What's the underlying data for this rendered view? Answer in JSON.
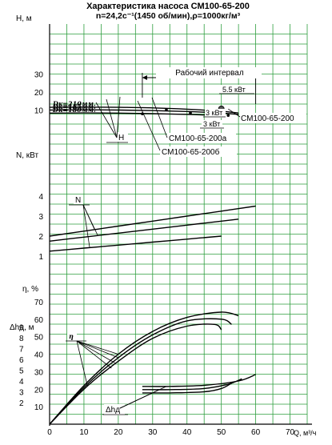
{
  "title": "Характеристика насоса СМ100-65-200",
  "subtitle": "n=24,2с⁻¹(1450 об/мин),ρ=1000кг/м³",
  "colors": {
    "grid": "#2e9e3e",
    "curve": "#000000"
  },
  "chart_data": {
    "type": "line",
    "x_label": "Q, м³/ч",
    "x_ticks": [
      "0",
      "10",
      "20",
      "30",
      "40",
      "50",
      "60",
      "70"
    ],
    "xlim": [
      0,
      75
    ],
    "panels": [
      {
        "id": "head",
        "ylabel": "H, м",
        "ylim": [
          0,
          40
        ],
        "y_ticks": [
          "10",
          "20",
          "30"
        ],
        "series": [
          {
            "name": "Dк=210мм.",
            "x": [
              0,
              10,
              20,
              30,
              40,
              50,
              55
            ],
            "y": [
              11.5,
              11.6,
              11.5,
              11.2,
              10.5,
              9.3,
              8.4
            ]
          },
          {
            "name": "Dк=185мм.",
            "x": [
              0,
              10,
              20,
              30,
              40,
              50,
              55
            ],
            "y": [
              10,
              10.1,
              10,
              9.7,
              9.2,
              8.3,
              7.6
            ]
          },
          {
            "name": "Dк=180мм.",
            "x": [
              0,
              10,
              20,
              30,
              40,
              50
            ],
            "y": [
              8.3,
              8.4,
              8.3,
              8,
              7.6,
              6.9
            ]
          }
        ],
        "annotations": {
          "work_interval": "Рабочий интервал",
          "model_1": "СМ100-65-200",
          "model_2": "СМ100-65-200а",
          "model_3": "СМ100-65-200б",
          "curve_letter": "H",
          "power_1": "5.5 кВт",
          "power_2": "3 кВт",
          "power_3": "3 кВт"
        }
      },
      {
        "id": "power",
        "ylabel": "N, кВт",
        "ylim": [
          0,
          5
        ],
        "y_ticks": [
          "1",
          "2",
          "3",
          "4"
        ],
        "series": [
          {
            "name": "Dк=210мм.",
            "x": [
              0,
              10,
              20,
              30,
              40,
              50,
              60
            ],
            "y": [
              2.0,
              2.25,
              2.5,
              2.75,
              3.0,
              3.25,
              3.5
            ]
          },
          {
            "name": "Dк=185мм.",
            "x": [
              0,
              10,
              20,
              30,
              40,
              50,
              55
            ],
            "y": [
              1.75,
              1.95,
              2.15,
              2.35,
              2.55,
              2.75,
              2.85
            ]
          },
          {
            "name": "Dк=180мм.",
            "x": [
              0,
              10,
              20,
              30,
              40,
              50
            ],
            "y": [
              1.25,
              1.4,
              1.55,
              1.7,
              1.85,
              2.0
            ]
          }
        ],
        "annotations": {
          "curve_letter": "N"
        }
      },
      {
        "id": "efficiency",
        "ylabel": "η, %",
        "ylim": [
          0,
          80
        ],
        "y_ticks": [
          "10",
          "20",
          "30",
          "40",
          "50",
          "60",
          "70"
        ],
        "series": [
          {
            "name": "Dк=210мм.",
            "x": [
              0,
              10,
              20,
              30,
              40,
              50,
              55
            ],
            "y": [
              0,
              22,
              40,
              53,
              61,
              64,
              62
            ]
          },
          {
            "name": "Dк=185мм.",
            "x": [
              0,
              10,
              20,
              30,
              40,
              50,
              53
            ],
            "y": [
              0,
              21,
              38,
              51,
              59,
              60,
              57
            ]
          },
          {
            "name": "Dк=180мм.",
            "x": [
              0,
              10,
              20,
              30,
              40,
              48,
              50
            ],
            "y": [
              0,
              20,
              36,
              49,
              56,
              57,
              54
            ]
          }
        ],
        "annotations": {
          "curve_letter": "η"
        }
      },
      {
        "id": "npsh",
        "ylabel": "Δhд, м",
        "ylim": [
          0,
          10
        ],
        "y_ticks": [
          "2",
          "3",
          "4",
          "5",
          "6",
          "7",
          "8",
          "9"
        ],
        "series": [
          {
            "name": "Dк=210мм.",
            "x": [
              27,
              35,
              45,
              55,
              60
            ],
            "y": [
              3.5,
              3.5,
              3.6,
              4.0,
              4.6
            ]
          },
          {
            "name": "Dк=185мм.",
            "x": [
              27,
              35,
              45,
              52,
              56
            ],
            "y": [
              3.2,
              3.2,
              3.3,
              3.7,
              4.2
            ]
          },
          {
            "name": "Dк=180мм.",
            "x": [
              27,
              35,
              45,
              50,
              53
            ],
            "y": [
              2.9,
              2.9,
              3.0,
              3.3,
              3.8
            ]
          }
        ],
        "annotations": {
          "curve_letter": "Δhд"
        }
      }
    ]
  }
}
